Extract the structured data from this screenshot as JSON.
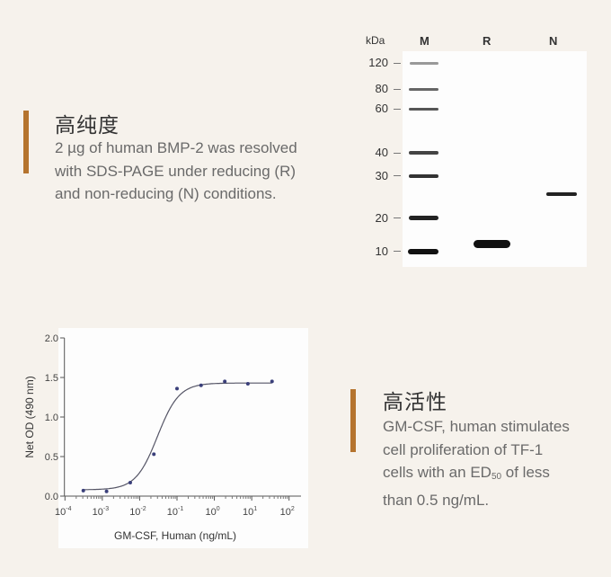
{
  "colors": {
    "accent": "#b5742e",
    "background": "#f6f2ec",
    "curve": "#555566",
    "points": "#3a3f7a"
  },
  "purity": {
    "title": "高纯度",
    "lines": [
      "2 µg of human BMP-2 was resolved",
      "with SDS-PAGE under reducing (R)",
      "and non-reducing (N) conditions."
    ]
  },
  "gel": {
    "unit_label": "kDa",
    "lanes": [
      "M",
      "R",
      "N"
    ],
    "ladder_labels": [
      "120",
      "80",
      "60",
      "40",
      "30",
      "20",
      "10"
    ]
  },
  "activity": {
    "title": "高活性",
    "line1": "GM-CSF, human stimulates",
    "line2": "cell proliferation of TF-1",
    "line3_pre": "cells with an ED",
    "line3_sub": "50",
    "line3_post": " of less",
    "line4": "than 0.5 ng/mL."
  },
  "chart_data": {
    "type": "scatter",
    "xlabel": "GM-CSF, Human (ng/mL)",
    "ylabel": "Net OD (490 nm)",
    "x_scale": "log",
    "xlim": [
      0.0001,
      100
    ],
    "ylim": [
      0,
      2.0
    ],
    "x_ticks": [
      {
        "base": "10",
        "exp": "-4"
      },
      {
        "base": "10",
        "exp": "-3"
      },
      {
        "base": "10",
        "exp": "-2"
      },
      {
        "base": "10",
        "exp": "-1"
      },
      {
        "base": "10",
        "exp": "0"
      },
      {
        "base": "10",
        "exp": "1"
      },
      {
        "base": "10",
        "exp": "2"
      }
    ],
    "y_ticks": [
      "0.0",
      "0.5",
      "1.0",
      "1.5",
      "2.0"
    ],
    "grid": false,
    "points": {
      "x": [
        0.00031,
        0.0013,
        0.0056,
        0.024,
        0.1,
        0.44,
        1.9,
        7.9,
        35
      ],
      "y": [
        0.07,
        0.06,
        0.17,
        0.53,
        1.36,
        1.4,
        1.45,
        1.42,
        1.45
      ]
    },
    "fit": {
      "model": "4PL",
      "bottom": 0.08,
      "top": 1.43,
      "ec50": 0.03,
      "hill": 1.5
    }
  }
}
